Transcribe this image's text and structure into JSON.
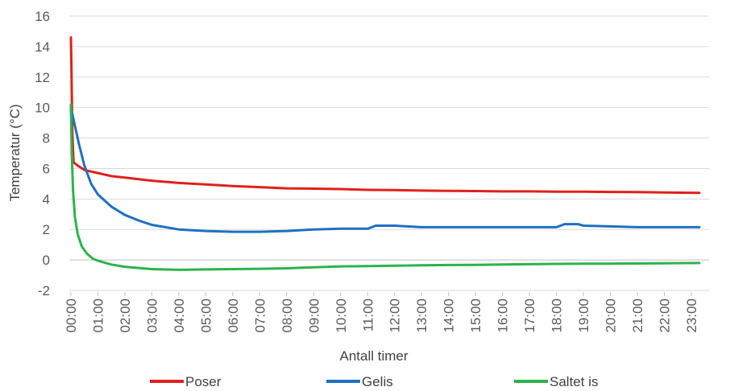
{
  "chart_data": {
    "type": "line",
    "xlabel": "Antall timer",
    "ylabel": "Temperatur (°C)",
    "ylim": [
      -2,
      16
    ],
    "yticks": [
      -2,
      0,
      2,
      4,
      6,
      8,
      10,
      12,
      14,
      16
    ],
    "xlim": [
      0,
      23.5
    ],
    "xticks": [
      "00:00",
      "01:00",
      "02:00",
      "03:00",
      "04:00",
      "05:00",
      "06:00",
      "07:00",
      "08:00",
      "09:00",
      "10:00",
      "11:00",
      "12:00",
      "13:00",
      "14:00",
      "15:00",
      "16:00",
      "17:00",
      "18:00",
      "19:00",
      "20:00",
      "21:00",
      "22:00",
      "23:00"
    ],
    "grid": true,
    "legend_position": "bottom",
    "series": [
      {
        "name": "Poser",
        "color": "#E0201B",
        "x": [
          0,
          0.02,
          0.05,
          0.1,
          0.25,
          0.5,
          1,
          1.5,
          2,
          3,
          4,
          5,
          6,
          7,
          8,
          9,
          10,
          11,
          12,
          13,
          14,
          15,
          16,
          17,
          18,
          19,
          20,
          21,
          22,
          23.3
        ],
        "y": [
          14.6,
          12.5,
          8.5,
          6.4,
          6.2,
          5.9,
          5.7,
          5.5,
          5.4,
          5.2,
          5.05,
          4.95,
          4.85,
          4.78,
          4.7,
          4.68,
          4.65,
          4.6,
          4.58,
          4.55,
          4.53,
          4.52,
          4.5,
          4.5,
          4.48,
          4.48,
          4.46,
          4.45,
          4.43,
          4.4
        ]
      },
      {
        "name": "Gelis",
        "color": "#1F70C1",
        "x": [
          0,
          0.05,
          0.1,
          0.3,
          0.5,
          0.75,
          1,
          1.5,
          2,
          2.5,
          3,
          4,
          5,
          6,
          7,
          8,
          9,
          10,
          11,
          11.3,
          12,
          13,
          14,
          15,
          16,
          17,
          18,
          18.3,
          18.8,
          19,
          20,
          21,
          22,
          23.3
        ],
        "y": [
          9.8,
          9.6,
          9.2,
          7.6,
          6.2,
          5.0,
          4.3,
          3.5,
          2.95,
          2.6,
          2.3,
          2.0,
          1.9,
          1.85,
          1.85,
          1.9,
          2.0,
          2.05,
          2.05,
          2.25,
          2.25,
          2.15,
          2.15,
          2.15,
          2.15,
          2.15,
          2.15,
          2.35,
          2.35,
          2.25,
          2.2,
          2.15,
          2.15,
          2.15
        ]
      },
      {
        "name": "Saltet is",
        "color": "#2DB34A",
        "x": [
          0,
          0.03,
          0.08,
          0.15,
          0.25,
          0.4,
          0.6,
          0.8,
          1,
          1.5,
          2,
          3,
          4,
          5,
          6,
          7,
          8,
          9,
          10,
          11,
          12,
          13,
          14,
          15,
          16,
          17,
          18,
          19,
          20,
          21,
          22,
          23.3
        ],
        "y": [
          10.2,
          7.0,
          4.5,
          2.8,
          1.7,
          0.9,
          0.4,
          0.1,
          -0.05,
          -0.3,
          -0.45,
          -0.6,
          -0.65,
          -0.62,
          -0.6,
          -0.58,
          -0.55,
          -0.48,
          -0.42,
          -0.4,
          -0.38,
          -0.35,
          -0.33,
          -0.32,
          -0.3,
          -0.28,
          -0.26,
          -0.25,
          -0.24,
          -0.23,
          -0.22,
          -0.2
        ]
      }
    ]
  }
}
